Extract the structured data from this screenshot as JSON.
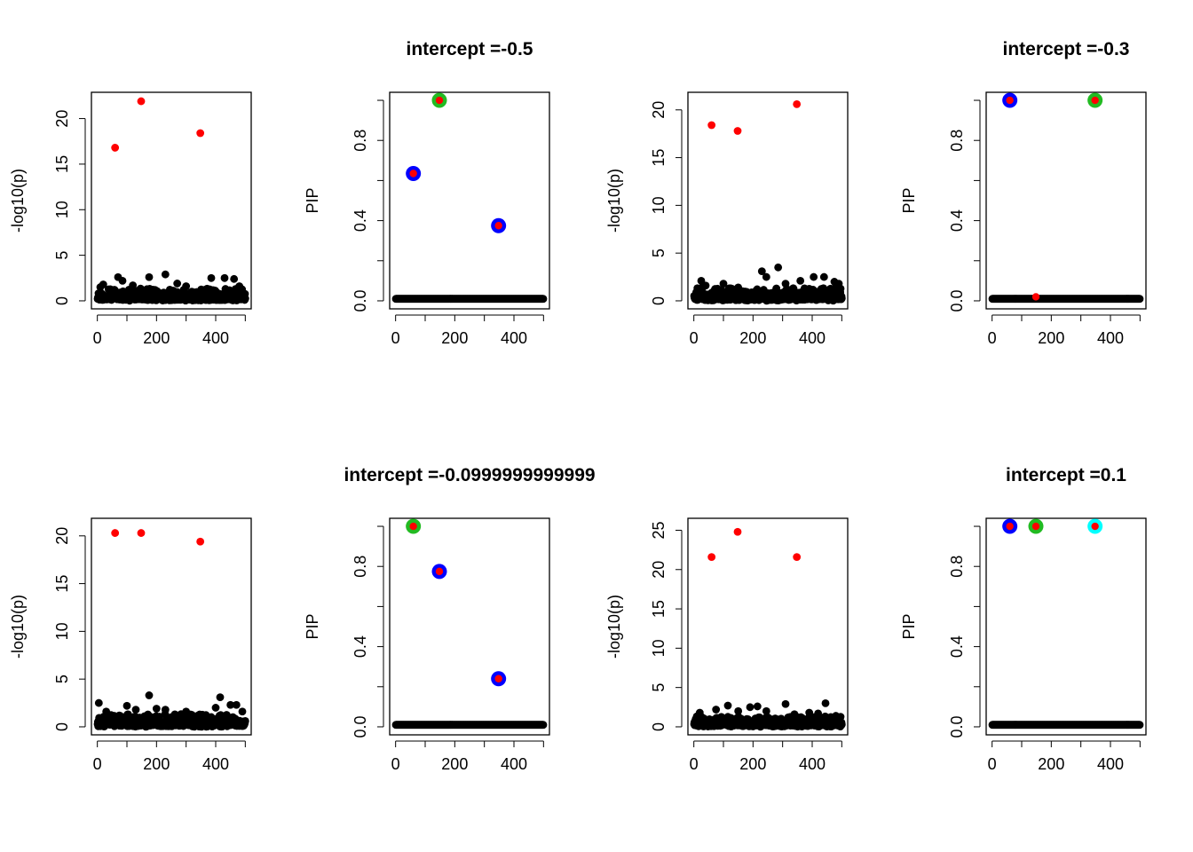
{
  "colors": {
    "background_point": "#000000",
    "signal_point": "#ff0000",
    "cs1": "#0000ff",
    "cs2": "#22bb22",
    "cs3": "#00ffff"
  },
  "chart_data": [
    {
      "type": "scatter",
      "title": "",
      "xlabel": "",
      "ylabel": "-log10(p)",
      "xlim": [
        0,
        500
      ],
      "ylim": [
        0,
        22
      ],
      "xticks": [
        "0",
        "200",
        "400"
      ],
      "yticks": [
        "0",
        "5",
        "10",
        "15",
        "20"
      ],
      "grid": false,
      "signals": [
        [
          60,
          16.8
        ],
        [
          148,
          21.9
        ],
        [
          348,
          18.4
        ]
      ],
      "elevated": [
        [
          10,
          1.5
        ],
        [
          20,
          1.8
        ],
        [
          70,
          2.6
        ],
        [
          85,
          2.2
        ],
        [
          120,
          1.7
        ],
        [
          175,
          2.6
        ],
        [
          230,
          2.9
        ],
        [
          270,
          1.9
        ],
        [
          300,
          1.6
        ],
        [
          385,
          2.5
        ],
        [
          430,
          2.5
        ],
        [
          462,
          2.4
        ],
        [
          480,
          1.6
        ]
      ]
    },
    {
      "type": "scatter",
      "title": "intercept =-0.5",
      "xlabel": "",
      "ylabel": "PIP",
      "xlim": [
        0,
        500
      ],
      "ylim": [
        0,
        1
      ],
      "xticks": [
        "0",
        "200",
        "400"
      ],
      "yticks": [
        "0.0",
        "0.4",
        "0.8"
      ],
      "grid": false,
      "baseline": 0.01,
      "signals": [
        [
          60,
          0.635
        ],
        [
          148,
          1.0
        ],
        [
          348,
          0.375
        ]
      ],
      "credible_sets": [
        {
          "color": "cs1",
          "x": [
            60,
            348
          ],
          "y": [
            0.635,
            0.375
          ]
        },
        {
          "color": "cs2",
          "x": [
            148
          ],
          "y": [
            1.0
          ]
        }
      ]
    },
    {
      "type": "scatter",
      "title": "",
      "xlabel": "",
      "ylabel": "-log10(p)",
      "xlim": [
        0,
        500
      ],
      "ylim": [
        0,
        21
      ],
      "xticks": [
        "0",
        "200",
        "400"
      ],
      "yticks": [
        "0",
        "5",
        "10",
        "15",
        "20"
      ],
      "grid": false,
      "signals": [
        [
          60,
          18.4
        ],
        [
          148,
          17.8
        ],
        [
          348,
          20.6
        ]
      ],
      "elevated": [
        [
          25,
          2.1
        ],
        [
          40,
          1.6
        ],
        [
          100,
          1.8
        ],
        [
          150,
          1.4
        ],
        [
          230,
          3.1
        ],
        [
          245,
          2.5
        ],
        [
          285,
          3.5
        ],
        [
          310,
          1.8
        ],
        [
          360,
          2.1
        ],
        [
          405,
          2.5
        ],
        [
          440,
          2.5
        ],
        [
          475,
          2.0
        ],
        [
          490,
          1.8
        ]
      ]
    },
    {
      "type": "scatter",
      "title": "intercept =-0.3",
      "xlabel": "",
      "ylabel": "PIP",
      "xlim": [
        0,
        500
      ],
      "ylim": [
        0,
        1
      ],
      "xticks": [
        "0",
        "200",
        "400"
      ],
      "yticks": [
        "0.0",
        "0.4",
        "0.8"
      ],
      "grid": false,
      "baseline": 0.01,
      "signals": [
        [
          60,
          1.0
        ],
        [
          148,
          0.02
        ],
        [
          348,
          1.0
        ]
      ],
      "credible_sets": [
        {
          "color": "cs1",
          "x": [
            60
          ],
          "y": [
            1.0
          ]
        },
        {
          "color": "cs2",
          "x": [
            348
          ],
          "y": [
            1.0
          ]
        }
      ]
    },
    {
      "type": "scatter",
      "title": "",
      "xlabel": "",
      "ylabel": "-log10(p)",
      "xlim": [
        0,
        500
      ],
      "ylim": [
        0,
        21
      ],
      "xticks": [
        "0",
        "200",
        "400"
      ],
      "yticks": [
        "0",
        "5",
        "10",
        "15",
        "20"
      ],
      "grid": false,
      "signals": [
        [
          60,
          20.3
        ],
        [
          148,
          20.3
        ],
        [
          348,
          19.4
        ]
      ],
      "elevated": [
        [
          5,
          2.5
        ],
        [
          30,
          1.6
        ],
        [
          100,
          2.2
        ],
        [
          130,
          1.8
        ],
        [
          175,
          3.3
        ],
        [
          200,
          1.9
        ],
        [
          230,
          1.8
        ],
        [
          300,
          1.6
        ],
        [
          400,
          2.0
        ],
        [
          415,
          3.1
        ],
        [
          450,
          2.3
        ],
        [
          470,
          2.3
        ],
        [
          490,
          1.6
        ]
      ]
    },
    {
      "type": "scatter",
      "title": "intercept =-0.0999999999999",
      "xlabel": "",
      "ylabel": "PIP",
      "xlim": [
        0,
        500
      ],
      "ylim": [
        0,
        1
      ],
      "xticks": [
        "0",
        "200",
        "400"
      ],
      "yticks": [
        "0.0",
        "0.4",
        "0.8"
      ],
      "grid": false,
      "baseline": 0.01,
      "signals": [
        [
          60,
          1.0
        ],
        [
          148,
          0.775
        ],
        [
          348,
          0.24
        ]
      ],
      "credible_sets": [
        {
          "color": "cs2",
          "x": [
            60
          ],
          "y": [
            1.0
          ]
        },
        {
          "color": "cs1",
          "x": [
            148,
            348
          ],
          "y": [
            0.775,
            0.24
          ]
        }
      ]
    },
    {
      "type": "scatter",
      "title": "",
      "xlabel": "",
      "ylabel": "-log10(p)",
      "xlim": [
        0,
        500
      ],
      "ylim": [
        0,
        25.5
      ],
      "xticks": [
        "0",
        "200",
        "400"
      ],
      "yticks": [
        "0",
        "5",
        "10",
        "15",
        "20",
        "25"
      ],
      "grid": false,
      "signals": [
        [
          60,
          21.6
        ],
        [
          148,
          24.8
        ],
        [
          348,
          21.6
        ]
      ],
      "elevated": [
        [
          20,
          1.8
        ],
        [
          75,
          2.2
        ],
        [
          115,
          2.7
        ],
        [
          150,
          2.0
        ],
        [
          190,
          2.5
        ],
        [
          215,
          2.6
        ],
        [
          245,
          2.0
        ],
        [
          310,
          2.9
        ],
        [
          340,
          1.6
        ],
        [
          390,
          1.8
        ],
        [
          420,
          1.7
        ],
        [
          445,
          3.0
        ],
        [
          480,
          1.4
        ]
      ]
    },
    {
      "type": "scatter",
      "title": "intercept =0.1",
      "xlabel": "",
      "ylabel": "PIP",
      "xlim": [
        0,
        500
      ],
      "ylim": [
        0,
        1
      ],
      "xticks": [
        "0",
        "200",
        "400"
      ],
      "yticks": [
        "0.0",
        "0.4",
        "0.8"
      ],
      "grid": false,
      "baseline": 0.01,
      "signals": [
        [
          60,
          1.0
        ],
        [
          148,
          1.0
        ],
        [
          348,
          1.0
        ]
      ],
      "credible_sets": [
        {
          "color": "cs1",
          "x": [
            60
          ],
          "y": [
            1.0
          ]
        },
        {
          "color": "cs2",
          "x": [
            148
          ],
          "y": [
            1.0
          ]
        },
        {
          "color": "cs3",
          "x": [
            348
          ],
          "y": [
            1.0
          ]
        }
      ]
    }
  ]
}
